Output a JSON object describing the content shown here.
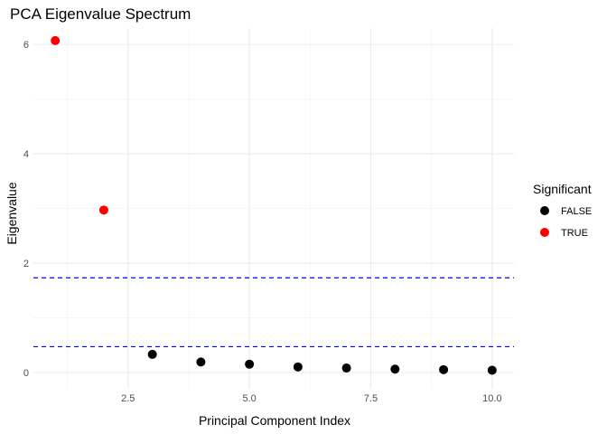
{
  "chart_data": {
    "type": "scatter",
    "title": "PCA Eigenvalue Spectrum",
    "xlabel": "Principal Component Index",
    "ylabel": "Eigenvalue",
    "xlim": [
      0.55,
      10.45
    ],
    "ylim": [
      -0.3,
      6.3
    ],
    "x_ticks": [
      2.5,
      5.0,
      7.5,
      10.0
    ],
    "x_tick_labels": [
      "2.5",
      "5.0",
      "7.5",
      "10.0"
    ],
    "y_ticks": [
      0,
      2,
      4,
      6
    ],
    "y_tick_labels": [
      "0",
      "2",
      "4",
      "6"
    ],
    "grid": true,
    "legend": {
      "title": "Significant",
      "placement": "right",
      "entries": [
        {
          "label": "FALSE",
          "color": "#000000"
        },
        {
          "label": "TRUE",
          "color": "#ff0000"
        }
      ]
    },
    "points": [
      {
        "x": 1,
        "y": 6.07,
        "significant": "TRUE"
      },
      {
        "x": 2,
        "y": 2.97,
        "significant": "TRUE"
      },
      {
        "x": 3,
        "y": 0.33,
        "significant": "FALSE"
      },
      {
        "x": 4,
        "y": 0.19,
        "significant": "FALSE"
      },
      {
        "x": 5,
        "y": 0.15,
        "significant": "FALSE"
      },
      {
        "x": 6,
        "y": 0.1,
        "significant": "FALSE"
      },
      {
        "x": 7,
        "y": 0.08,
        "significant": "FALSE"
      },
      {
        "x": 8,
        "y": 0.06,
        "significant": "FALSE"
      },
      {
        "x": 9,
        "y": 0.05,
        "significant": "FALSE"
      },
      {
        "x": 10,
        "y": 0.04,
        "significant": "FALSE"
      }
    ],
    "reference_lines": [
      {
        "y": 1.73,
        "color": "#0000ff",
        "style": "dashed"
      },
      {
        "y": 0.47,
        "color": "#0000ff",
        "style": "dashed"
      }
    ]
  }
}
